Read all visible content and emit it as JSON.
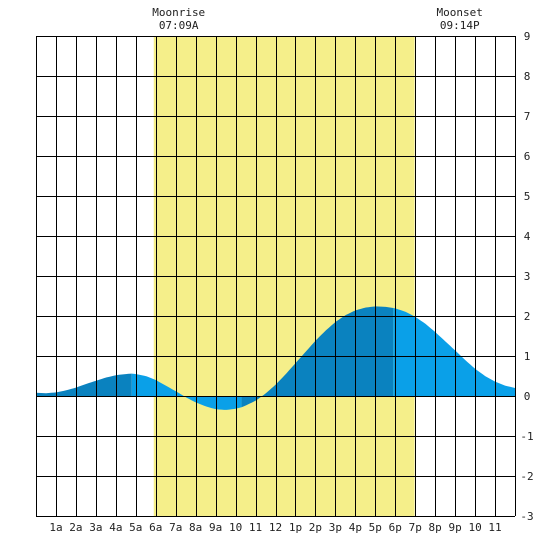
{
  "chart_data": {
    "type": "area",
    "title": "",
    "xlabel": "",
    "ylabel": "",
    "xlim": [
      0,
      24
    ],
    "ylim": [
      -3,
      9
    ],
    "grid": true,
    "x_tick_labels": [
      "1a",
      "2a",
      "3a",
      "4a",
      "5a",
      "6a",
      "7a",
      "8a",
      "9a",
      "10",
      "11",
      "12",
      "1p",
      "2p",
      "3p",
      "4p",
      "5p",
      "6p",
      "7p",
      "8p",
      "9p",
      "10",
      "11"
    ],
    "y_tick_labels": [
      "-3",
      "-2",
      "-1",
      "0",
      "1",
      "2",
      "3",
      "4",
      "5",
      "6",
      "7",
      "8",
      "9"
    ],
    "daylight": {
      "start_hour": 5.9,
      "end_hour": 18.97
    },
    "moon_events": [
      {
        "label": "Moonrise",
        "time": "07:09A",
        "hour": 7.15
      },
      {
        "label": "Moonset",
        "time": "09:14P",
        "hour": 21.23
      }
    ],
    "series": [
      {
        "x": [
          0,
          0.5,
          1,
          1.5,
          2,
          2.5,
          3,
          3.5,
          4,
          4.5,
          4.8,
          5,
          5.5,
          6,
          6.5,
          7,
          7.5,
          8,
          8.5,
          9,
          9.5,
          10,
          10.3,
          10.5,
          11,
          11.5,
          12,
          12.5,
          13,
          13.5,
          14,
          14.5,
          15,
          15.5,
          16,
          16.5,
          17,
          17.5,
          17.9,
          18,
          18.5,
          19,
          19.5,
          20,
          20.5,
          21,
          21.5,
          22,
          22.5,
          23,
          23.5,
          24
        ],
        "values": [
          0.08,
          0.07,
          0.09,
          0.14,
          0.21,
          0.3,
          0.38,
          0.46,
          0.52,
          0.55,
          0.56,
          0.55,
          0.5,
          0.4,
          0.26,
          0.12,
          -0.03,
          -0.16,
          -0.26,
          -0.33,
          -0.35,
          -0.32,
          -0.28,
          -0.24,
          -0.12,
          0.06,
          0.28,
          0.54,
          0.82,
          1.1,
          1.38,
          1.63,
          1.85,
          2.02,
          2.14,
          2.21,
          2.24,
          2.23,
          2.2,
          2.19,
          2.11,
          1.98,
          1.81,
          1.6,
          1.37,
          1.14,
          0.9,
          0.68,
          0.5,
          0.36,
          0.26,
          0.2
        ]
      }
    ],
    "colors": {
      "daylight": "#f5ef8a",
      "tide_light": "#0aa0e8",
      "tide_dark": "#0a82bf",
      "grid": "#000000"
    }
  }
}
